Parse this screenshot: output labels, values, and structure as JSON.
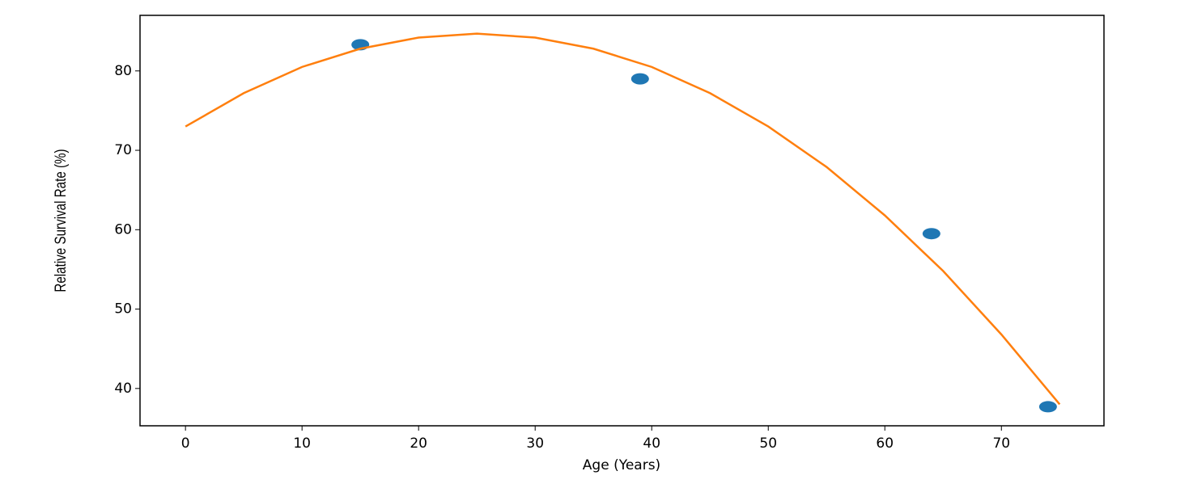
{
  "chart_data": {
    "type": "scatter",
    "xlabel": "Age (Years)",
    "ylabel": "Relative Survival Rate (%)",
    "xlim": [
      -3.9,
      78.8
    ],
    "ylim": [
      35.3,
      87.0
    ],
    "xticks": [
      0,
      10,
      20,
      30,
      40,
      50,
      60,
      70
    ],
    "yticks": [
      40,
      50,
      60,
      70,
      80
    ],
    "series": [
      {
        "type": "scatter",
        "color": "#1f77b4",
        "x": [
          15,
          39,
          64,
          74
        ],
        "values": [
          83.3,
          79.0,
          59.5,
          37.7
        ]
      },
      {
        "type": "line",
        "color": "#ff7f0e",
        "x": [
          0,
          5,
          10,
          15,
          20,
          25,
          30,
          35,
          40,
          45,
          50,
          55,
          60,
          65,
          70,
          75
        ],
        "values": [
          73.0,
          77.2,
          80.5,
          82.8,
          84.2,
          84.7,
          84.2,
          82.8,
          80.5,
          77.2,
          73.0,
          67.9,
          61.8,
          54.8,
          46.8,
          38.0
        ]
      }
    ]
  }
}
